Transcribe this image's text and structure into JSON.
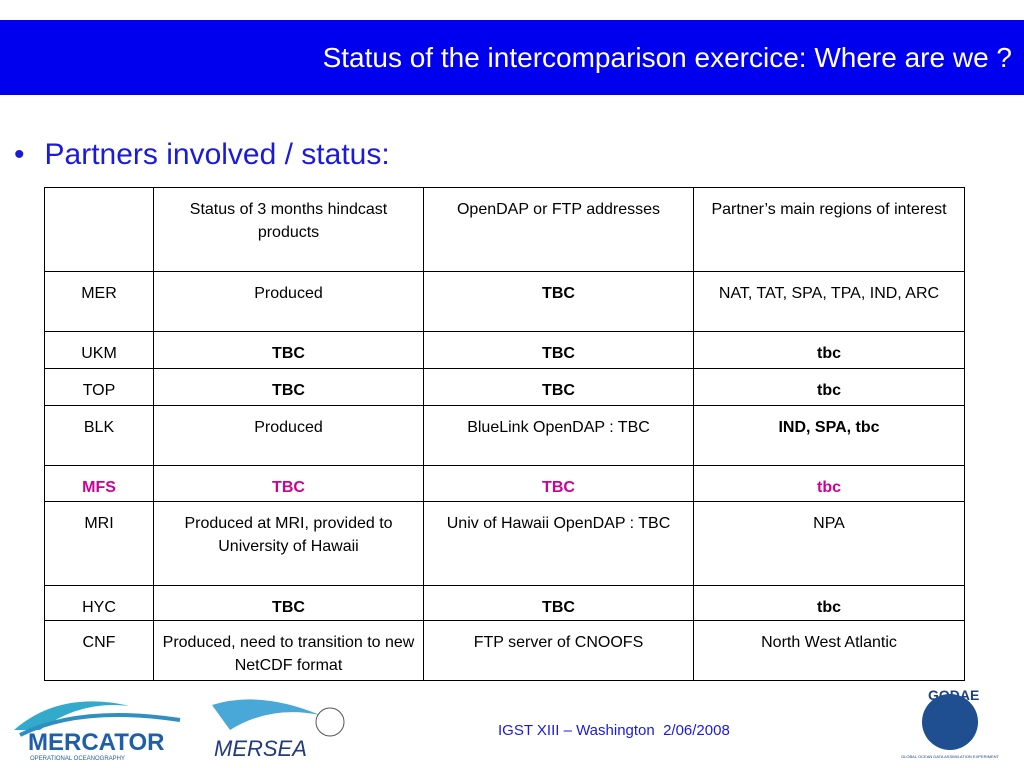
{
  "header": {
    "title": "Status of the intercomparison exercice: Where are we ?"
  },
  "bullet": "Partners involved / status:",
  "table": {
    "header": [
      "",
      "Status of 3 months hindcast products",
      "OpenDAP or FTP addresses",
      "Partner’s main regions of interest"
    ],
    "rows": [
      [
        "MER",
        "Produced",
        "TBC",
        "NAT, TAT, SPA, TPA, IND, ARC"
      ],
      [
        "UKM",
        "TBC",
        "TBC",
        "tbc"
      ],
      [
        "TOP",
        "TBC",
        "TBC",
        "tbc"
      ],
      [
        "BLK",
        "Produced",
        "BlueLink OpenDAP : TBC",
        "IND, SPA, tbc"
      ],
      [
        "MFS",
        "TBC",
        "TBC",
        "tbc"
      ],
      [
        "MRI",
        "Produced at MRI, provided to University of Hawaii",
        "Univ of Hawaii OpenDAP : TBC",
        "NPA"
      ],
      [
        "HYC",
        "TBC",
        "TBC",
        "tbc"
      ],
      [
        "CNF",
        "Produced, need to transition to new NetCDF format",
        "FTP server of CNOOFS",
        "North West Atlantic"
      ]
    ]
  },
  "footer": {
    "text": "IGST XIII – Washington  2/06/2008"
  },
  "logos": {
    "mercator": "MERCATOR",
    "mercator_sub": "OPERATIONAL OCEANOGRAPHY",
    "mersea": "MERSEA",
    "godae": "GODAE",
    "godae_sub": "GLOBAL OCEAN DATA ASSIMILATION EXPERIMENT"
  }
}
